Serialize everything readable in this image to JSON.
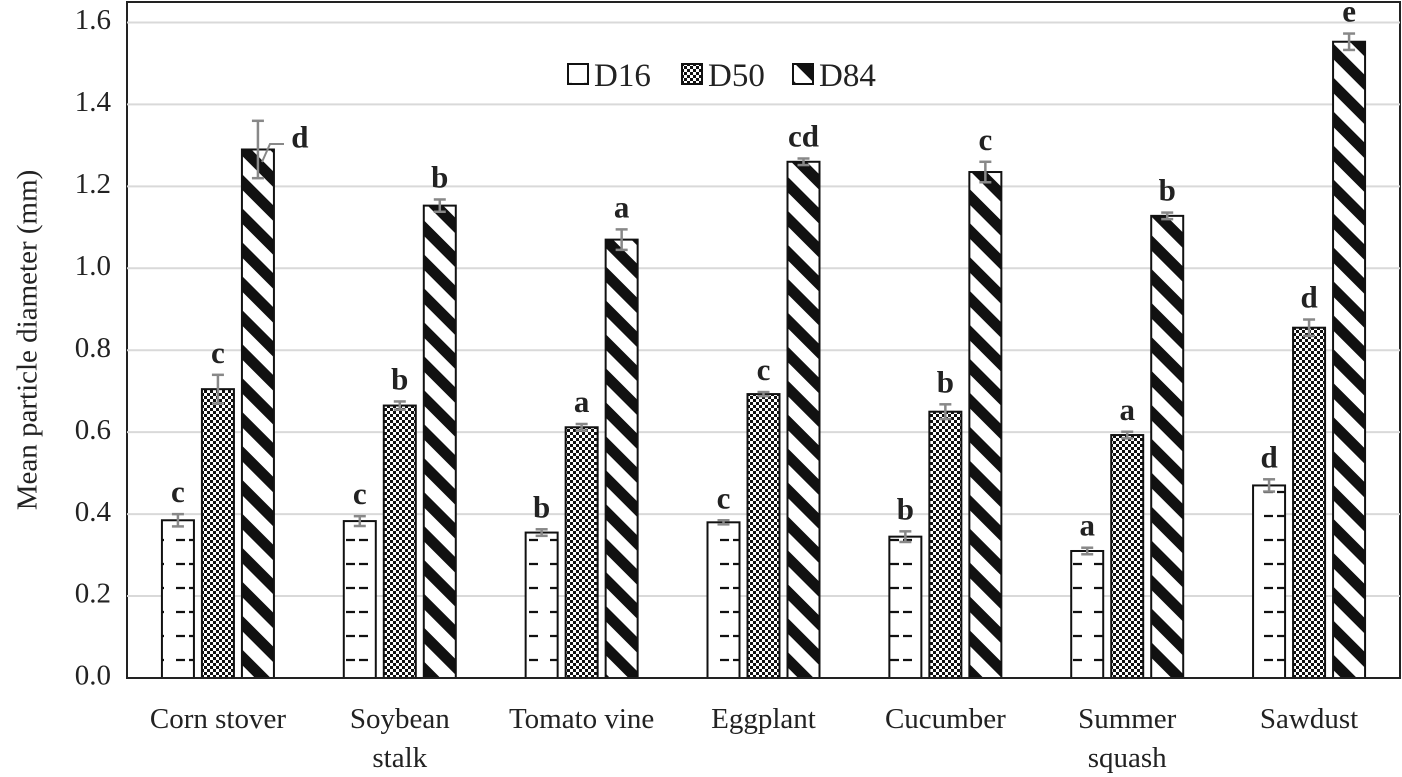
{
  "chart_data": {
    "type": "bar",
    "ylabel": "Mean particle diameter (mm)",
    "xlabel": "",
    "ylim": [
      0,
      1.65
    ],
    "yticks": [
      "0.0",
      "0.2",
      "0.4",
      "0.6",
      "0.8",
      "1.0",
      "1.2",
      "1.4",
      "1.6"
    ],
    "grid": true,
    "legend_position": "top-center",
    "categories": [
      [
        "Corn stover"
      ],
      [
        "Soybean",
        "stalk"
      ],
      [
        "Tomato vine"
      ],
      [
        "Eggplant"
      ],
      [
        "Cucumber"
      ],
      [
        "Summer",
        "squash"
      ],
      [
        "Sawdust"
      ]
    ],
    "series": [
      {
        "name": "D16",
        "pattern": "dashes",
        "values": [
          0.385,
          0.383,
          0.355,
          0.38,
          0.345,
          0.31,
          0.47
        ],
        "errors": [
          0.015,
          0.012,
          0.008,
          0.005,
          0.013,
          0.008,
          0.015
        ],
        "letters": [
          "c",
          "c",
          "b",
          "c",
          "b",
          "a",
          "d"
        ]
      },
      {
        "name": "D50",
        "pattern": "checker",
        "values": [
          0.705,
          0.665,
          0.612,
          0.693,
          0.65,
          0.593,
          0.855
        ],
        "errors": [
          0.035,
          0.01,
          0.008,
          0.005,
          0.018,
          0.008,
          0.02
        ],
        "letters": [
          "c",
          "b",
          "a",
          "c",
          "b",
          "a",
          "d"
        ]
      },
      {
        "name": "D84",
        "pattern": "diagonal",
        "values": [
          1.29,
          1.153,
          1.07,
          1.26,
          1.235,
          1.128,
          1.553
        ],
        "errors": [
          0.07,
          0.015,
          0.025,
          0.008,
          0.025,
          0.008,
          0.02
        ],
        "letters": [
          "d",
          "b",
          "a",
          "cd",
          "c",
          "b",
          "e"
        ]
      }
    ]
  }
}
